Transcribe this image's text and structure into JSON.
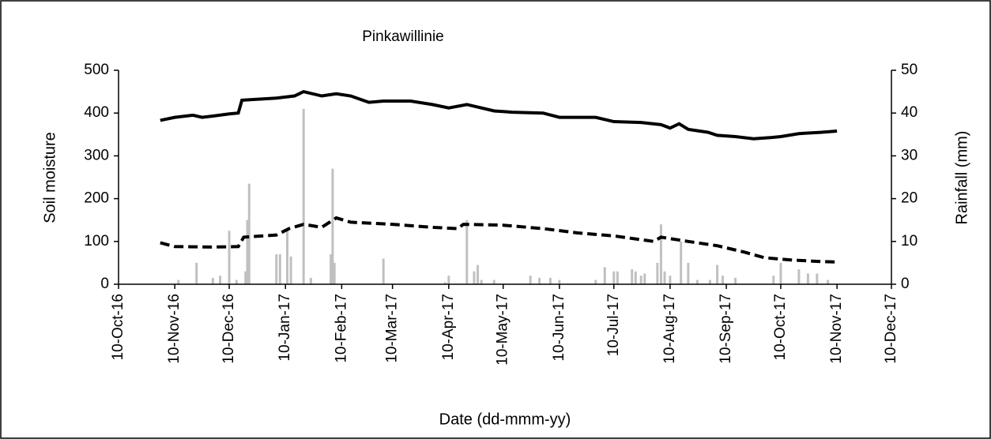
{
  "chart_data": {
    "type": "combo",
    "title": "Pinkawillinie",
    "xlabel": "Date (dd-mmm-yy)",
    "ylabel": "Soil moisture",
    "y2label": "Rainfall (mm)",
    "xlim": [
      "2016-10-10",
      "2017-12-10"
    ],
    "xticks": [
      {
        "value": "2016-10-10",
        "label": "10-Oct-16"
      },
      {
        "value": "2016-11-10",
        "label": "10-Nov-16"
      },
      {
        "value": "2016-12-10",
        "label": "10-Dec-16"
      },
      {
        "value": "2017-01-10",
        "label": "10-Jan-17"
      },
      {
        "value": "2017-02-10",
        "label": "10-Feb-17"
      },
      {
        "value": "2017-03-10",
        "label": "10-Mar-17"
      },
      {
        "value": "2017-04-10",
        "label": "10-Apr-17"
      },
      {
        "value": "2017-05-10",
        "label": "10-May-17"
      },
      {
        "value": "2017-06-10",
        "label": "10-Jun-17"
      },
      {
        "value": "2017-07-10",
        "label": "10-Jul-17"
      },
      {
        "value": "2017-08-10",
        "label": "10-Aug-17"
      },
      {
        "value": "2017-09-10",
        "label": "10-Sep-17"
      },
      {
        "value": "2017-10-10",
        "label": "10-Oct-17"
      },
      {
        "value": "2017-11-10",
        "label": "10-Nov-17"
      },
      {
        "value": "2017-12-10",
        "label": "10-Dec-17"
      }
    ],
    "ylim": [
      0,
      500
    ],
    "yticks": [
      0,
      100,
      200,
      300,
      400,
      500
    ],
    "y2lim": [
      0,
      50
    ],
    "y2ticks": [
      0,
      10,
      20,
      30,
      40,
      50
    ],
    "series": [
      {
        "type": "line",
        "color": "#000000",
        "dash": false,
        "x": [
          "2016-11-02",
          "2016-11-10",
          "2016-11-20",
          "2016-11-25",
          "2016-12-01",
          "2016-12-10",
          "2016-12-15",
          "2016-12-17",
          "2017-01-05",
          "2017-01-15",
          "2017-01-20",
          "2017-01-30",
          "2017-02-07",
          "2017-02-15",
          "2017-02-25",
          "2017-03-05",
          "2017-03-20",
          "2017-04-01",
          "2017-04-10",
          "2017-04-20",
          "2017-04-25",
          "2017-05-05",
          "2017-05-15",
          "2017-06-01",
          "2017-06-10",
          "2017-06-30",
          "2017-07-10",
          "2017-07-25",
          "2017-08-05",
          "2017-08-10",
          "2017-08-15",
          "2017-08-20",
          "2017-08-31",
          "2017-09-05",
          "2017-09-15",
          "2017-09-25",
          "2017-10-05",
          "2017-10-10",
          "2017-10-20",
          "2017-11-01",
          "2017-11-10"
        ],
        "values": [
          383,
          390,
          395,
          390,
          393,
          398,
          400,
          430,
          435,
          440,
          450,
          440,
          445,
          440,
          425,
          428,
          428,
          420,
          412,
          420,
          415,
          405,
          402,
          400,
          390,
          390,
          380,
          378,
          373,
          365,
          375,
          362,
          355,
          348,
          345,
          340,
          343,
          345,
          352,
          355,
          358
        ]
      },
      {
        "type": "line",
        "color": "#000000",
        "dash": true,
        "x": [
          "2016-11-02",
          "2016-11-10",
          "2016-12-01",
          "2016-12-15",
          "2016-12-18",
          "2017-01-05",
          "2017-01-12",
          "2017-01-20",
          "2017-01-30",
          "2017-02-07",
          "2017-02-15",
          "2017-03-10",
          "2017-04-01",
          "2017-04-15",
          "2017-04-18",
          "2017-05-10",
          "2017-06-01",
          "2017-06-20",
          "2017-07-10",
          "2017-08-01",
          "2017-08-05",
          "2017-08-20",
          "2017-09-05",
          "2017-09-20",
          "2017-10-01",
          "2017-10-15",
          "2017-11-01",
          "2017-11-10"
        ],
        "values": [
          97,
          88,
          87,
          88,
          110,
          115,
          130,
          140,
          133,
          155,
          145,
          140,
          133,
          130,
          140,
          138,
          130,
          120,
          113,
          100,
          110,
          100,
          90,
          75,
          62,
          57,
          53,
          52
        ]
      },
      {
        "type": "bar",
        "color": "#c0c0c0",
        "axis": "y2",
        "x": [
          "2016-11-12",
          "2016-11-22",
          "2016-12-01",
          "2016-12-05",
          "2016-12-10",
          "2016-12-14",
          "2016-12-19",
          "2016-12-20",
          "2016-12-21",
          "2017-01-05",
          "2017-01-07",
          "2017-01-11",
          "2017-01-13",
          "2017-01-20",
          "2017-01-24",
          "2017-02-04",
          "2017-02-05",
          "2017-02-06",
          "2017-03-05",
          "2017-04-08",
          "2017-04-10",
          "2017-04-20",
          "2017-04-24",
          "2017-04-26",
          "2017-04-28",
          "2017-05-05",
          "2017-05-25",
          "2017-05-30",
          "2017-06-05",
          "2017-06-10",
          "2017-06-30",
          "2017-07-05",
          "2017-07-10",
          "2017-07-12",
          "2017-07-20",
          "2017-07-22",
          "2017-07-25",
          "2017-07-27",
          "2017-08-03",
          "2017-08-05",
          "2017-08-07",
          "2017-08-10",
          "2017-08-16",
          "2017-08-20",
          "2017-08-25",
          "2017-09-01",
          "2017-09-05",
          "2017-09-08",
          "2017-09-15",
          "2017-10-06",
          "2017-10-10",
          "2017-10-20",
          "2017-10-25",
          "2017-10-30",
          "2017-11-05"
        ],
        "values": [
          1,
          5,
          1.5,
          2,
          12.5,
          1,
          3,
          15,
          23.5,
          7,
          7,
          13,
          6.5,
          41,
          1.5,
          7,
          27,
          5,
          6,
          0.5,
          2,
          15,
          3,
          4.5,
          1,
          1,
          2,
          1.5,
          1.5,
          1,
          1,
          4,
          3,
          3,
          3.5,
          3,
          2,
          2.5,
          5,
          14,
          3,
          2,
          10,
          5,
          1,
          1,
          4.5,
          2,
          1.5,
          2,
          5,
          3.5,
          2.5,
          2.5,
          1
        ]
      }
    ]
  }
}
